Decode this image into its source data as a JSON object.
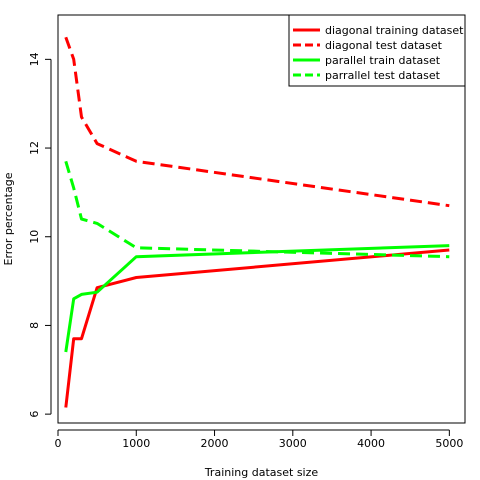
{
  "chart_data": {
    "type": "line",
    "xlabel": "Training dataset size",
    "ylabel": "Error percentage",
    "xlim": [
      0,
      5200
    ],
    "ylim": [
      5.8,
      15.0
    ],
    "xticks": [
      0,
      1000,
      2000,
      3000,
      4000,
      5000
    ],
    "yticks": [
      6,
      8,
      10,
      12,
      14
    ],
    "grid": false,
    "legend_position": "top-right",
    "series": [
      {
        "name": "diagonal training dataset",
        "color": "#ff0000",
        "dash": "solid",
        "x": [
          100,
          200,
          300,
          500,
          1000,
          5000
        ],
        "y": [
          6.15,
          7.7,
          7.7,
          8.85,
          9.08,
          9.7
        ]
      },
      {
        "name": "diagonal test dataset",
        "color": "#ff0000",
        "dash": "dashed",
        "x": [
          100,
          200,
          300,
          500,
          1000,
          5000
        ],
        "y": [
          14.5,
          14.0,
          12.7,
          12.1,
          11.7,
          10.7
        ]
      },
      {
        "name": "parallel train dataset",
        "color": "#00ff00",
        "dash": "solid",
        "x": [
          100,
          200,
          300,
          500,
          1000,
          5000
        ],
        "y": [
          7.4,
          8.6,
          8.7,
          8.75,
          9.55,
          9.8
        ]
      },
      {
        "name": "parrallel test dataset",
        "color": "#00ff00",
        "dash": "dashed",
        "x": [
          100,
          200,
          300,
          500,
          1000,
          5000
        ],
        "y": [
          11.7,
          11.1,
          10.4,
          10.3,
          9.75,
          9.55
        ]
      }
    ]
  }
}
